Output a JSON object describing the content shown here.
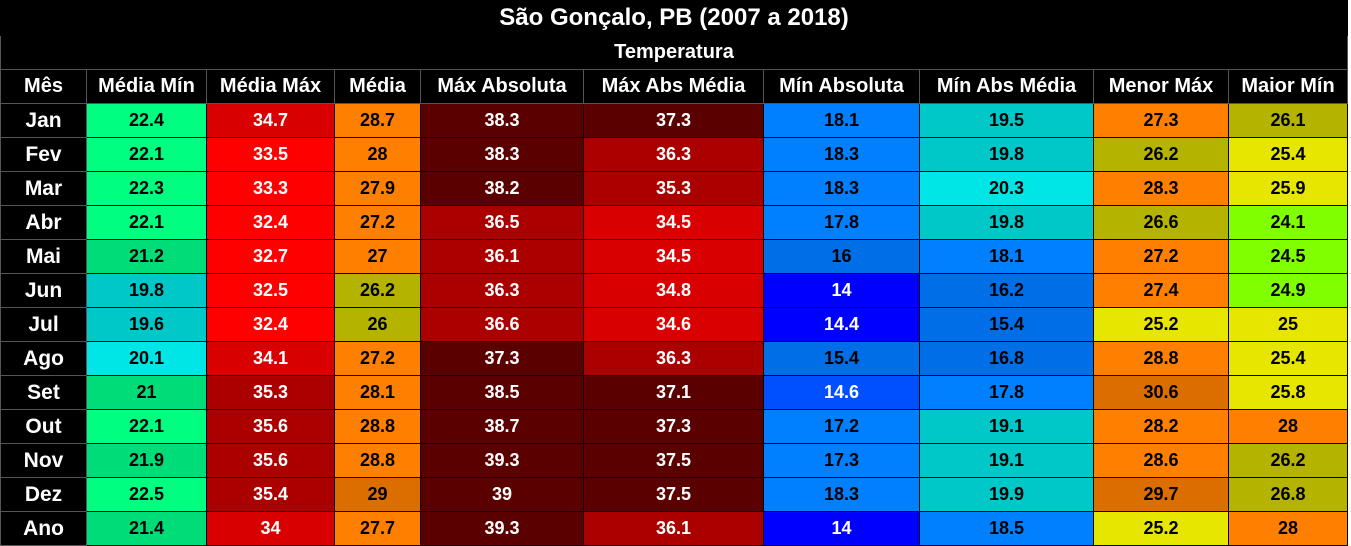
{
  "title": "São Gonçalo, PB (2007 a 2018)",
  "subtitle": "Temperatura",
  "chart_data": {
    "type": "table",
    "columns": [
      "Mês",
      "Média Mín",
      "Média Máx",
      "Média",
      "Máx Absoluta",
      "Máx Abs Média",
      "Mín Absoluta",
      "Mín Abs Média",
      "Menor Máx",
      "Maior Mín"
    ],
    "rows": [
      {
        "label": "Jan",
        "cells": [
          {
            "v": "22.4",
            "bg": "#00ff80",
            "fg": "#000000"
          },
          {
            "v": "34.7",
            "bg": "#d80000",
            "fg": "#ffffff"
          },
          {
            "v": "28.7",
            "bg": "#ff8000",
            "fg": "#000000"
          },
          {
            "v": "38.3",
            "bg": "#5a0000",
            "fg": "#ffffff"
          },
          {
            "v": "37.3",
            "bg": "#5a0000",
            "fg": "#ffffff"
          },
          {
            "v": "18.1",
            "bg": "#0080ff",
            "fg": "#000000"
          },
          {
            "v": "19.5",
            "bg": "#00c8c8",
            "fg": "#000000"
          },
          {
            "v": "27.3",
            "bg": "#ff8000",
            "fg": "#000000"
          },
          {
            "v": "26.1",
            "bg": "#b4b400",
            "fg": "#000000"
          }
        ]
      },
      {
        "label": "Fev",
        "cells": [
          {
            "v": "22.1",
            "bg": "#00ff80",
            "fg": "#000000"
          },
          {
            "v": "33.5",
            "bg": "#ff0000",
            "fg": "#ffffff"
          },
          {
            "v": "28",
            "bg": "#ff8000",
            "fg": "#000000"
          },
          {
            "v": "38.3",
            "bg": "#5a0000",
            "fg": "#ffffff"
          },
          {
            "v": "36.3",
            "bg": "#aa0000",
            "fg": "#ffffff"
          },
          {
            "v": "18.3",
            "bg": "#0080ff",
            "fg": "#000000"
          },
          {
            "v": "19.8",
            "bg": "#00c8c8",
            "fg": "#000000"
          },
          {
            "v": "26.2",
            "bg": "#b4b400",
            "fg": "#000000"
          },
          {
            "v": "25.4",
            "bg": "#e6e600",
            "fg": "#000000"
          }
        ]
      },
      {
        "label": "Mar",
        "cells": [
          {
            "v": "22.3",
            "bg": "#00ff80",
            "fg": "#000000"
          },
          {
            "v": "33.3",
            "bg": "#ff0000",
            "fg": "#ffffff"
          },
          {
            "v": "27.9",
            "bg": "#ff8000",
            "fg": "#000000"
          },
          {
            "v": "38.2",
            "bg": "#5a0000",
            "fg": "#ffffff"
          },
          {
            "v": "35.3",
            "bg": "#aa0000",
            "fg": "#ffffff"
          },
          {
            "v": "18.3",
            "bg": "#0080ff",
            "fg": "#000000"
          },
          {
            "v": "20.3",
            "bg": "#00e6e6",
            "fg": "#000000"
          },
          {
            "v": "28.3",
            "bg": "#ff8000",
            "fg": "#000000"
          },
          {
            "v": "25.9",
            "bg": "#e6e600",
            "fg": "#000000"
          }
        ]
      },
      {
        "label": "Abr",
        "cells": [
          {
            "v": "22.1",
            "bg": "#00ff80",
            "fg": "#000000"
          },
          {
            "v": "32.4",
            "bg": "#ff0000",
            "fg": "#ffffff"
          },
          {
            "v": "27.2",
            "bg": "#ff8000",
            "fg": "#000000"
          },
          {
            "v": "36.5",
            "bg": "#aa0000",
            "fg": "#ffffff"
          },
          {
            "v": "34.5",
            "bg": "#d80000",
            "fg": "#ffffff"
          },
          {
            "v": "17.8",
            "bg": "#0080ff",
            "fg": "#000000"
          },
          {
            "v": "19.8",
            "bg": "#00c8c8",
            "fg": "#000000"
          },
          {
            "v": "26.6",
            "bg": "#b4b400",
            "fg": "#000000"
          },
          {
            "v": "24.1",
            "bg": "#80ff00",
            "fg": "#000000"
          }
        ]
      },
      {
        "label": "Mai",
        "cells": [
          {
            "v": "21.2",
            "bg": "#00dc78",
            "fg": "#000000"
          },
          {
            "v": "32.7",
            "bg": "#ff0000",
            "fg": "#ffffff"
          },
          {
            "v": "27",
            "bg": "#ff8000",
            "fg": "#000000"
          },
          {
            "v": "36.1",
            "bg": "#aa0000",
            "fg": "#ffffff"
          },
          {
            "v": "34.5",
            "bg": "#d80000",
            "fg": "#ffffff"
          },
          {
            "v": "16",
            "bg": "#006ee6",
            "fg": "#000000"
          },
          {
            "v": "18.1",
            "bg": "#0080ff",
            "fg": "#000000"
          },
          {
            "v": "27.2",
            "bg": "#ff8000",
            "fg": "#000000"
          },
          {
            "v": "24.5",
            "bg": "#80ff00",
            "fg": "#000000"
          }
        ]
      },
      {
        "label": "Jun",
        "cells": [
          {
            "v": "19.8",
            "bg": "#00c8c8",
            "fg": "#000000"
          },
          {
            "v": "32.5",
            "bg": "#ff0000",
            "fg": "#ffffff"
          },
          {
            "v": "26.2",
            "bg": "#b4b400",
            "fg": "#000000"
          },
          {
            "v": "36.3",
            "bg": "#aa0000",
            "fg": "#ffffff"
          },
          {
            "v": "34.8",
            "bg": "#d80000",
            "fg": "#ffffff"
          },
          {
            "v": "14",
            "bg": "#0000ff",
            "fg": "#ffffff"
          },
          {
            "v": "16.2",
            "bg": "#006ee6",
            "fg": "#000000"
          },
          {
            "v": "27.4",
            "bg": "#ff8000",
            "fg": "#000000"
          },
          {
            "v": "24.9",
            "bg": "#80ff00",
            "fg": "#000000"
          }
        ]
      },
      {
        "label": "Jul",
        "cells": [
          {
            "v": "19.6",
            "bg": "#00c8c8",
            "fg": "#000000"
          },
          {
            "v": "32.4",
            "bg": "#ff0000",
            "fg": "#ffffff"
          },
          {
            "v": "26",
            "bg": "#b4b400",
            "fg": "#000000"
          },
          {
            "v": "36.6",
            "bg": "#aa0000",
            "fg": "#ffffff"
          },
          {
            "v": "34.6",
            "bg": "#d80000",
            "fg": "#ffffff"
          },
          {
            "v": "14.4",
            "bg": "#0000ff",
            "fg": "#ffffff"
          },
          {
            "v": "15.4",
            "bg": "#006ee6",
            "fg": "#000000"
          },
          {
            "v": "25.2",
            "bg": "#e6e600",
            "fg": "#000000"
          },
          {
            "v": "25",
            "bg": "#e6e600",
            "fg": "#000000"
          }
        ]
      },
      {
        "label": "Ago",
        "cells": [
          {
            "v": "20.1",
            "bg": "#00e6e6",
            "fg": "#000000"
          },
          {
            "v": "34.1",
            "bg": "#d80000",
            "fg": "#ffffff"
          },
          {
            "v": "27.2",
            "bg": "#ff8000",
            "fg": "#000000"
          },
          {
            "v": "37.3",
            "bg": "#5a0000",
            "fg": "#ffffff"
          },
          {
            "v": "36.3",
            "bg": "#aa0000",
            "fg": "#ffffff"
          },
          {
            "v": "15.4",
            "bg": "#006ee6",
            "fg": "#000000"
          },
          {
            "v": "16.8",
            "bg": "#006ee6",
            "fg": "#000000"
          },
          {
            "v": "28.8",
            "bg": "#ff8000",
            "fg": "#000000"
          },
          {
            "v": "25.4",
            "bg": "#e6e600",
            "fg": "#000000"
          }
        ]
      },
      {
        "label": "Set",
        "cells": [
          {
            "v": "21",
            "bg": "#00dc78",
            "fg": "#000000"
          },
          {
            "v": "35.3",
            "bg": "#aa0000",
            "fg": "#ffffff"
          },
          {
            "v": "28.1",
            "bg": "#ff8000",
            "fg": "#000000"
          },
          {
            "v": "38.5",
            "bg": "#5a0000",
            "fg": "#ffffff"
          },
          {
            "v": "37.1",
            "bg": "#5a0000",
            "fg": "#ffffff"
          },
          {
            "v": "14.6",
            "bg": "#0050ff",
            "fg": "#ffffff"
          },
          {
            "v": "17.8",
            "bg": "#0080ff",
            "fg": "#000000"
          },
          {
            "v": "30.6",
            "bg": "#dc6e00",
            "fg": "#000000"
          },
          {
            "v": "25.8",
            "bg": "#e6e600",
            "fg": "#000000"
          }
        ]
      },
      {
        "label": "Out",
        "cells": [
          {
            "v": "22.1",
            "bg": "#00ff80",
            "fg": "#000000"
          },
          {
            "v": "35.6",
            "bg": "#aa0000",
            "fg": "#ffffff"
          },
          {
            "v": "28.8",
            "bg": "#ff8000",
            "fg": "#000000"
          },
          {
            "v": "38.7",
            "bg": "#5a0000",
            "fg": "#ffffff"
          },
          {
            "v": "37.3",
            "bg": "#5a0000",
            "fg": "#ffffff"
          },
          {
            "v": "17.2",
            "bg": "#0080ff",
            "fg": "#000000"
          },
          {
            "v": "19.1",
            "bg": "#00c8c8",
            "fg": "#000000"
          },
          {
            "v": "28.2",
            "bg": "#ff8000",
            "fg": "#000000"
          },
          {
            "v": "28",
            "bg": "#ff8000",
            "fg": "#000000"
          }
        ]
      },
      {
        "label": "Nov",
        "cells": [
          {
            "v": "21.9",
            "bg": "#00dc78",
            "fg": "#000000"
          },
          {
            "v": "35.6",
            "bg": "#aa0000",
            "fg": "#ffffff"
          },
          {
            "v": "28.8",
            "bg": "#ff8000",
            "fg": "#000000"
          },
          {
            "v": "39.3",
            "bg": "#5a0000",
            "fg": "#ffffff"
          },
          {
            "v": "37.5",
            "bg": "#5a0000",
            "fg": "#ffffff"
          },
          {
            "v": "17.3",
            "bg": "#0080ff",
            "fg": "#000000"
          },
          {
            "v": "19.1",
            "bg": "#00c8c8",
            "fg": "#000000"
          },
          {
            "v": "28.6",
            "bg": "#ff8000",
            "fg": "#000000"
          },
          {
            "v": "26.2",
            "bg": "#b4b400",
            "fg": "#000000"
          }
        ]
      },
      {
        "label": "Dez",
        "cells": [
          {
            "v": "22.5",
            "bg": "#00ff80",
            "fg": "#000000"
          },
          {
            "v": "35.4",
            "bg": "#aa0000",
            "fg": "#ffffff"
          },
          {
            "v": "29",
            "bg": "#dc6e00",
            "fg": "#000000"
          },
          {
            "v": "39",
            "bg": "#5a0000",
            "fg": "#ffffff"
          },
          {
            "v": "37.5",
            "bg": "#5a0000",
            "fg": "#ffffff"
          },
          {
            "v": "18.3",
            "bg": "#0080ff",
            "fg": "#000000"
          },
          {
            "v": "19.9",
            "bg": "#00c8c8",
            "fg": "#000000"
          },
          {
            "v": "29.7",
            "bg": "#dc6e00",
            "fg": "#000000"
          },
          {
            "v": "26.8",
            "bg": "#b4b400",
            "fg": "#000000"
          }
        ]
      },
      {
        "label": "Ano",
        "cells": [
          {
            "v": "21.4",
            "bg": "#00dc78",
            "fg": "#000000"
          },
          {
            "v": "34",
            "bg": "#d80000",
            "fg": "#ffffff"
          },
          {
            "v": "27.7",
            "bg": "#ff8000",
            "fg": "#000000"
          },
          {
            "v": "39.3",
            "bg": "#5a0000",
            "fg": "#ffffff"
          },
          {
            "v": "36.1",
            "bg": "#aa0000",
            "fg": "#ffffff"
          },
          {
            "v": "14",
            "bg": "#0000ff",
            "fg": "#ffffff"
          },
          {
            "v": "18.5",
            "bg": "#0080ff",
            "fg": "#000000"
          },
          {
            "v": "25.2",
            "bg": "#e6e600",
            "fg": "#000000"
          },
          {
            "v": "28",
            "bg": "#ff8000",
            "fg": "#000000"
          }
        ]
      }
    ]
  }
}
